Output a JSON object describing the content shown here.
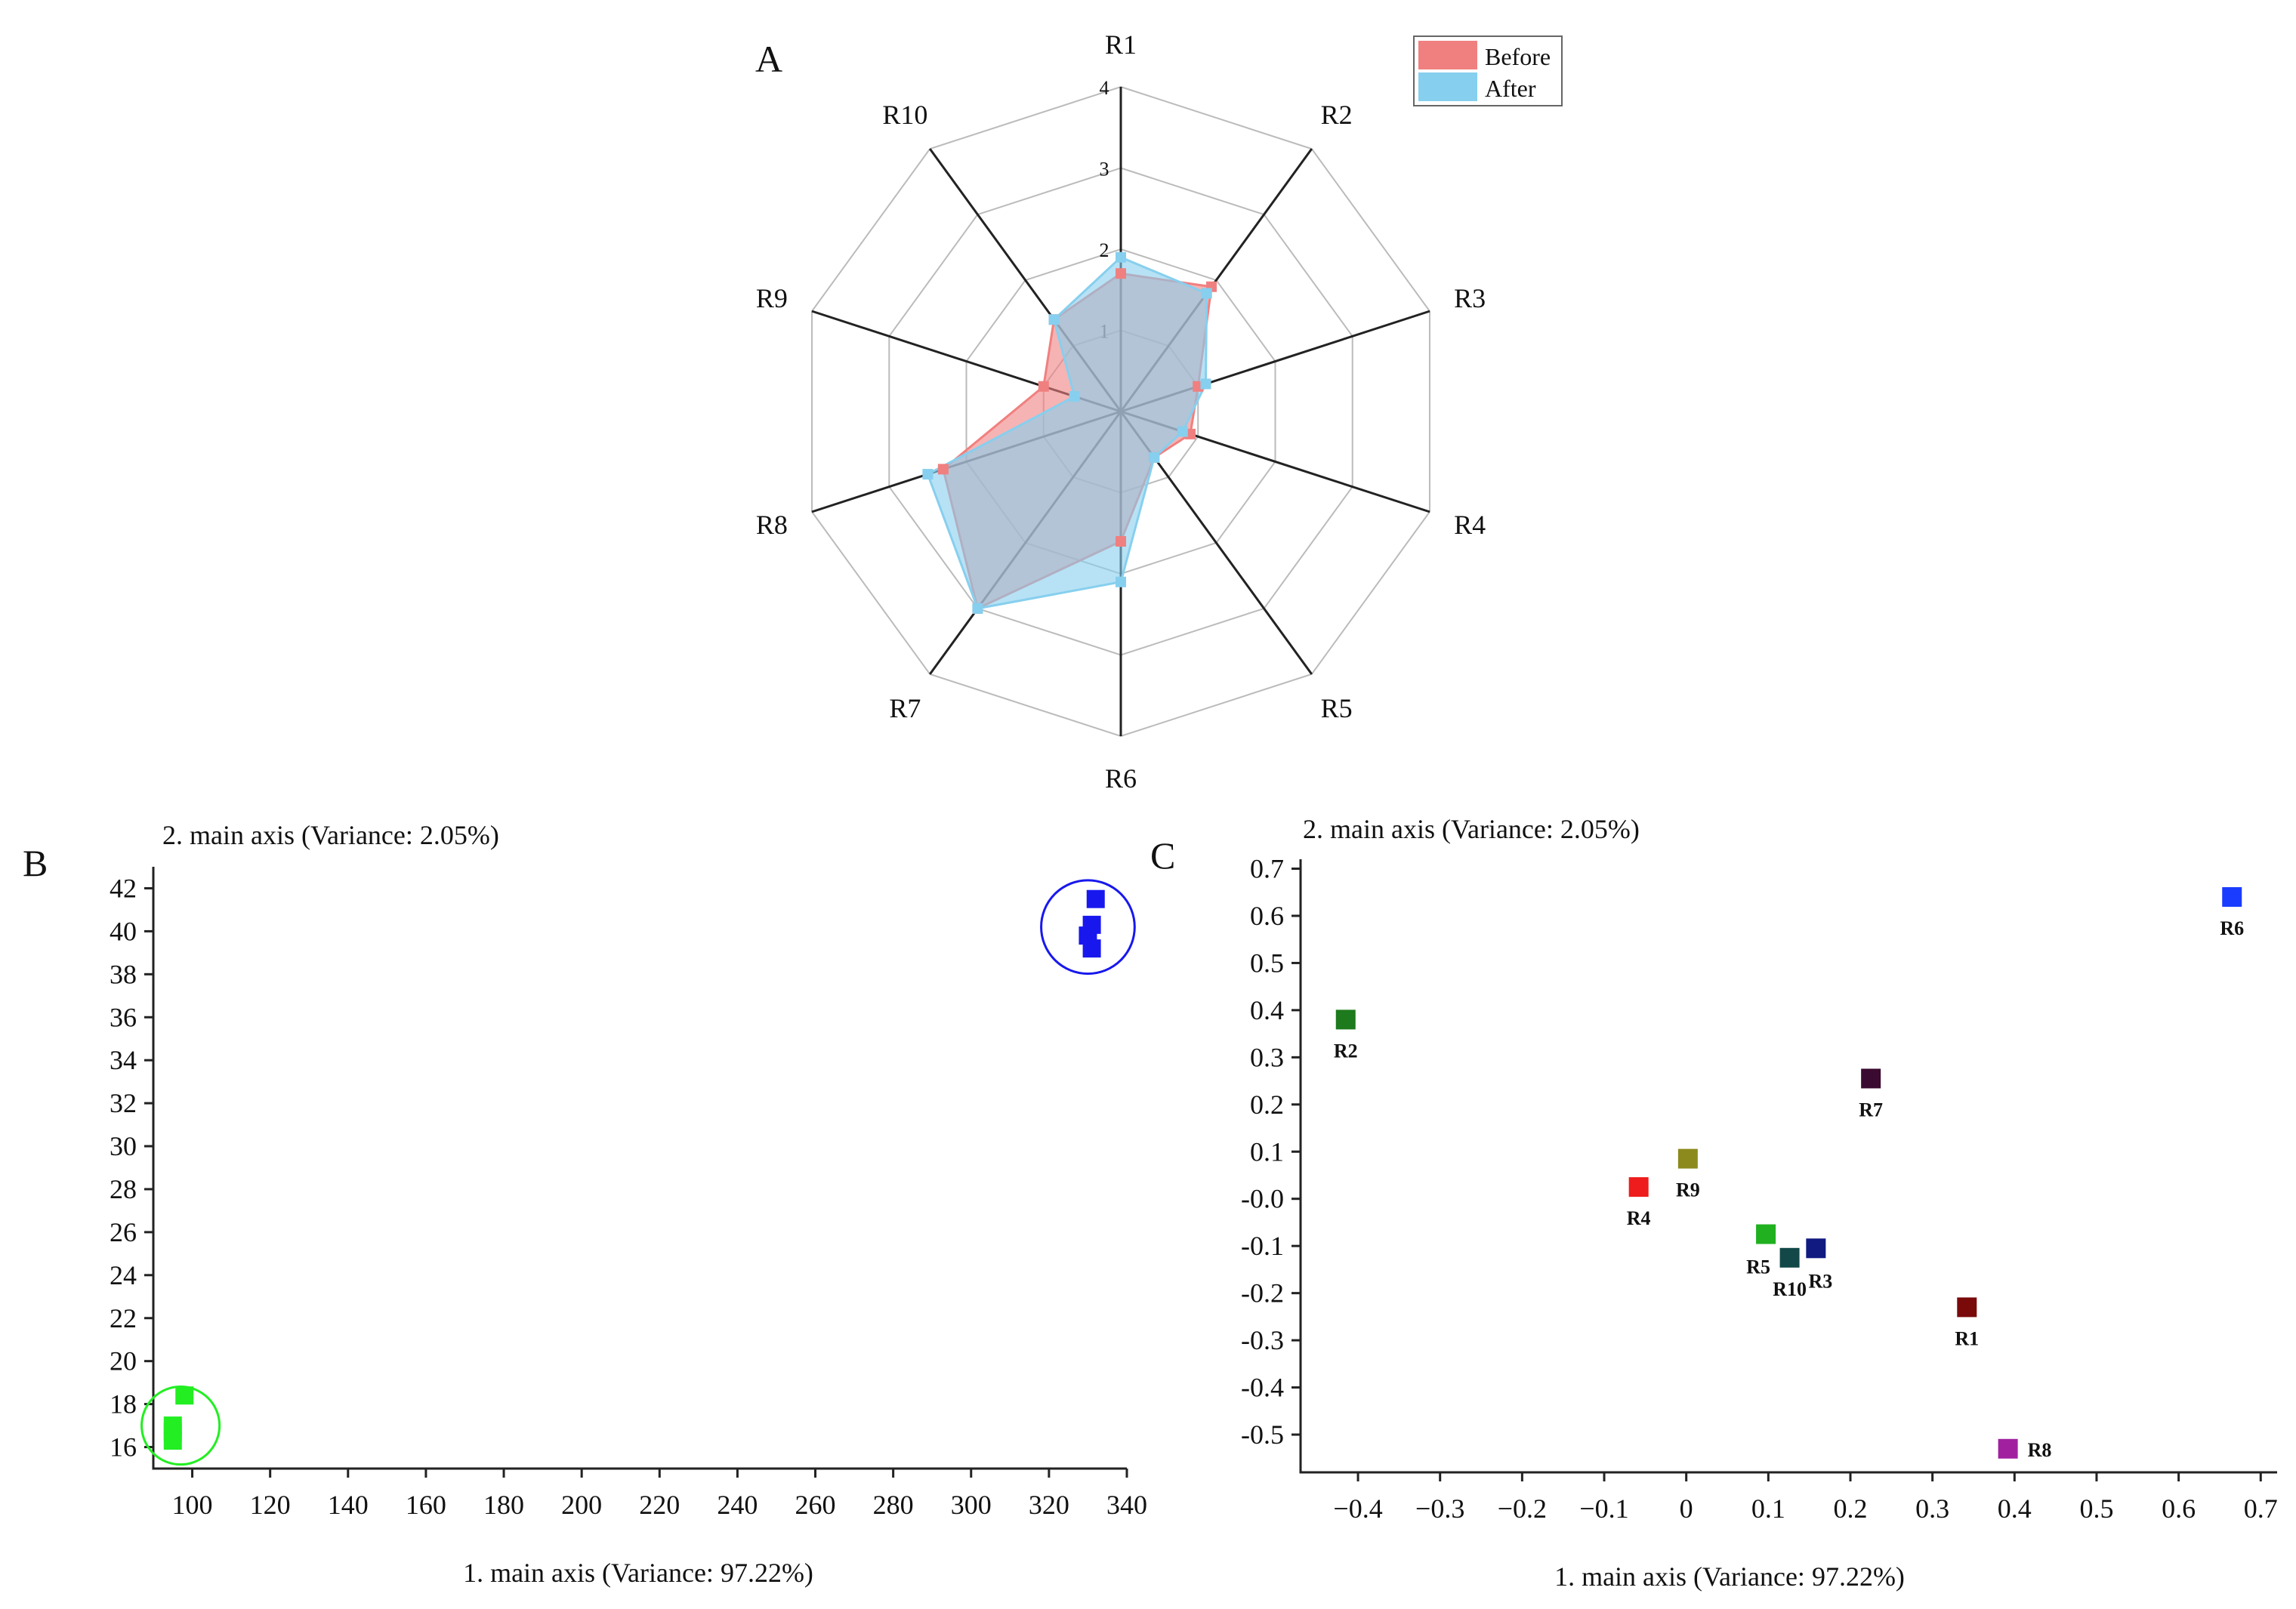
{
  "panels": {
    "a": "A",
    "b": "B",
    "c": "C"
  },
  "chart_data": [
    {
      "type": "radar",
      "panel": "A",
      "axes": [
        "R1",
        "R2",
        "R3",
        "R4",
        "R5",
        "R6",
        "R7",
        "R8",
        "R9",
        "R10"
      ],
      "rlim": [
        0,
        4
      ],
      "rticks": [
        "1",
        "2",
        "3",
        "4"
      ],
      "legend": {
        "position": "top-right",
        "entries": [
          "Before",
          "After"
        ]
      },
      "series": [
        {
          "name": "Before",
          "color": "#f08080",
          "values": [
            1.7,
            1.9,
            1.0,
            0.9,
            0.7,
            1.6,
            3.0,
            2.3,
            1.0,
            1.4
          ]
        },
        {
          "name": "After",
          "color": "#87cfee",
          "values": [
            1.9,
            1.8,
            1.1,
            0.8,
            0.7,
            2.1,
            3.0,
            2.5,
            0.6,
            1.4
          ]
        }
      ],
      "overlap_color": "#8878a8"
    },
    {
      "type": "scatter",
      "panel": "B",
      "xlabel": "1. main axis (Variance: 97.22%)",
      "ylabel": "2. main axis (Variance: 2.05%)",
      "xlim": [
        90,
        340
      ],
      "ylim": [
        15,
        43
      ],
      "xticks": [
        100,
        120,
        140,
        160,
        180,
        200,
        220,
        240,
        260,
        280,
        300,
        320,
        340
      ],
      "yticks": [
        16,
        18,
        20,
        22,
        24,
        26,
        28,
        30,
        32,
        34,
        36,
        38,
        40,
        42
      ],
      "groups": [
        {
          "color": "#22ee22",
          "ring_center": [
            97,
            17
          ],
          "ring_radius": 10,
          "points": [
            [
              98,
              18.4
            ],
            [
              95,
              17.0
            ],
            [
              95,
              16.7
            ],
            [
              95,
              16.3
            ]
          ]
        },
        {
          "color": "#1818ee",
          "ring_center": [
            330,
            40.2
          ],
          "ring_radius": 12,
          "points": [
            [
              332,
              41.5
            ],
            [
              331,
              40.3
            ],
            [
              330,
              39.8
            ],
            [
              331,
              39.2
            ]
          ]
        }
      ]
    },
    {
      "type": "scatter",
      "panel": "C",
      "xlabel": "1. main axis (Variance: 97.22%)",
      "ylabel": "2. main axis (Variance: 2.05%)",
      "xlim": [
        -0.47,
        0.72
      ],
      "ylim": [
        -0.58,
        0.72
      ],
      "xticks": [
        "-0.4",
        "-0.3",
        "-0.2",
        "-0.1",
        "0",
        "0.1",
        "0.2",
        "0.3",
        "0.4",
        "0.5",
        "0.6",
        "0.7"
      ],
      "yticks": [
        "0.7",
        "0.6",
        "0.5",
        "0.4",
        "0.3",
        "0.2",
        "0.1",
        "-0.0",
        "-0.1",
        "-0.2",
        "-0.3",
        "-0.4",
        "-0.5"
      ],
      "points": [
        {
          "label": "R6",
          "x": 0.665,
          "y": 0.64,
          "color": "#1a3cff",
          "label_pos": "below"
        },
        {
          "label": "R2",
          "x": -0.415,
          "y": 0.38,
          "color": "#1d7a1d",
          "label_pos": "below"
        },
        {
          "label": "R7",
          "x": 0.225,
          "y": 0.255,
          "color": "#3a0a30",
          "label_pos": "below"
        },
        {
          "label": "R9",
          "x": 0.002,
          "y": 0.085,
          "color": "#8c8a1c",
          "label_pos": "below"
        },
        {
          "label": "R4",
          "x": -0.058,
          "y": 0.025,
          "color": "#ee1c1c",
          "label_pos": "below"
        },
        {
          "label": "R5",
          "x": 0.097,
          "y": -0.075,
          "color": "#20b020",
          "label_pos": "below-left"
        },
        {
          "label": "R3",
          "x": 0.158,
          "y": -0.105,
          "color": "#101a80",
          "label_pos": "below-right"
        },
        {
          "label": "R10",
          "x": 0.126,
          "y": -0.125,
          "color": "#124848",
          "label_pos": "below"
        },
        {
          "label": "R1",
          "x": 0.342,
          "y": -0.23,
          "color": "#7a0a0a",
          "label_pos": "below"
        },
        {
          "label": "R8",
          "x": 0.392,
          "y": -0.53,
          "color": "#a020a0",
          "label_pos": "right"
        }
      ]
    }
  ]
}
